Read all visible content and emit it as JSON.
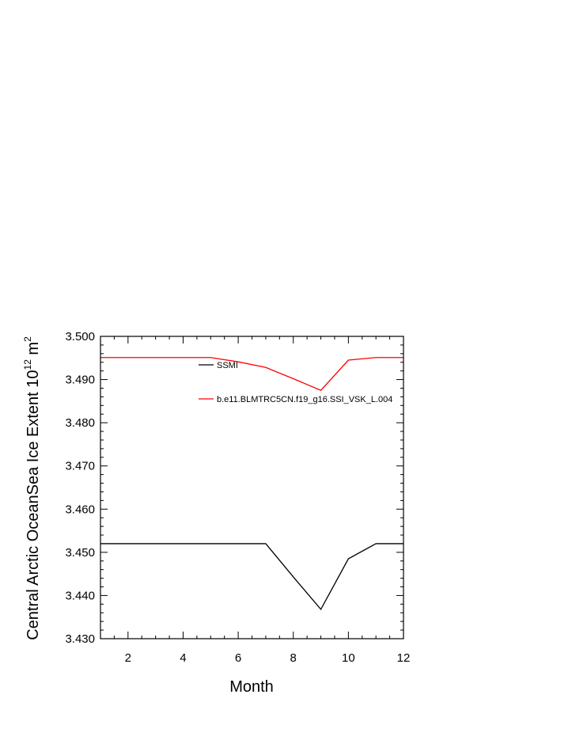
{
  "chart_data": {
    "type": "line",
    "title": "",
    "xlabel": "Month",
    "ylabel_main": "Central Arctic OceanSea Ice Extent 10",
    "ylabel_exp1": "12",
    "ylabel_unit": " m",
    "ylabel_exp2": "2",
    "xlim": [
      1,
      12
    ],
    "ylim": [
      3.43,
      3.5
    ],
    "xticks": [
      2,
      4,
      6,
      8,
      10,
      12
    ],
    "yticks": [
      3.43,
      3.44,
      3.45,
      3.46,
      3.47,
      3.48,
      3.49,
      3.5
    ],
    "ytick_labels": [
      "3.430",
      "3.440",
      "3.450",
      "3.460",
      "3.470",
      "3.480",
      "3.490",
      "3.500"
    ],
    "grid": false,
    "legend_position": "top-center",
    "x": [
      1,
      2,
      3,
      4,
      5,
      6,
      7,
      8,
      9,
      10,
      11,
      12
    ],
    "series": [
      {
        "name": "SSMI",
        "color": "#000000",
        "values": [
          3.452,
          3.452,
          3.452,
          3.452,
          3.452,
          3.452,
          3.452,
          3.4443,
          3.4368,
          3.4485,
          3.452,
          3.452
        ]
      },
      {
        "name": "b.e11.BLMTRC5CN.f19_g16.SSI_VSK_L.004",
        "color": "#ff0000",
        "values": [
          3.4951,
          3.4951,
          3.4951,
          3.4951,
          3.4951,
          3.4941,
          3.4928,
          3.4902,
          3.4875,
          3.4945,
          3.4951,
          3.4951
        ]
      }
    ]
  }
}
